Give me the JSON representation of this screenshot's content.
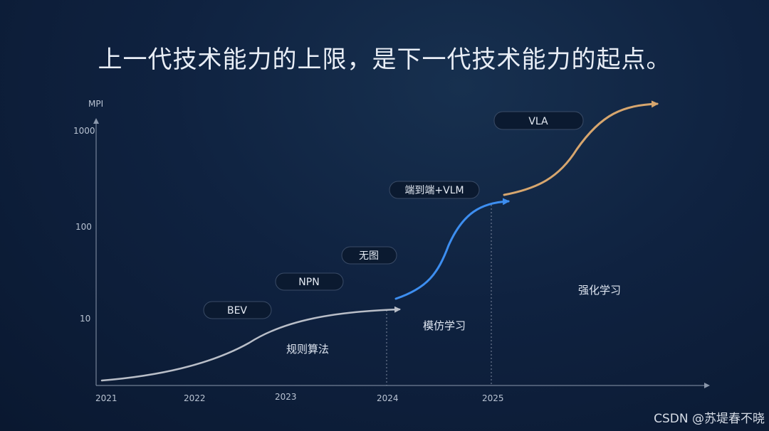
{
  "headline": "上一代技术能力的上限，是下一代技术能力的起点。",
  "y_axis": {
    "title": "MPI",
    "ticks": [
      "1000",
      "100",
      "10"
    ]
  },
  "x_axis": {
    "ticks": [
      "2021",
      "2022",
      "2023",
      "2024",
      "2025"
    ]
  },
  "stages": {
    "rules": "规则算法",
    "imitation": "模仿学习",
    "reinforcement": "强化学习"
  },
  "tags": {
    "bev": "BEV",
    "npn": "NPN",
    "wutu": "无图",
    "e2e_vlm": "端到端+VLM",
    "vla": "VLA"
  },
  "colors": {
    "rules_curve": "#b9bec8",
    "imitation_curve": "#3d8ef0",
    "reinforcement_curve": "#d7a66e",
    "axis": "#8a97ab",
    "background": "#0f2240"
  },
  "watermark": "CSDN @苏堤春不晓"
}
